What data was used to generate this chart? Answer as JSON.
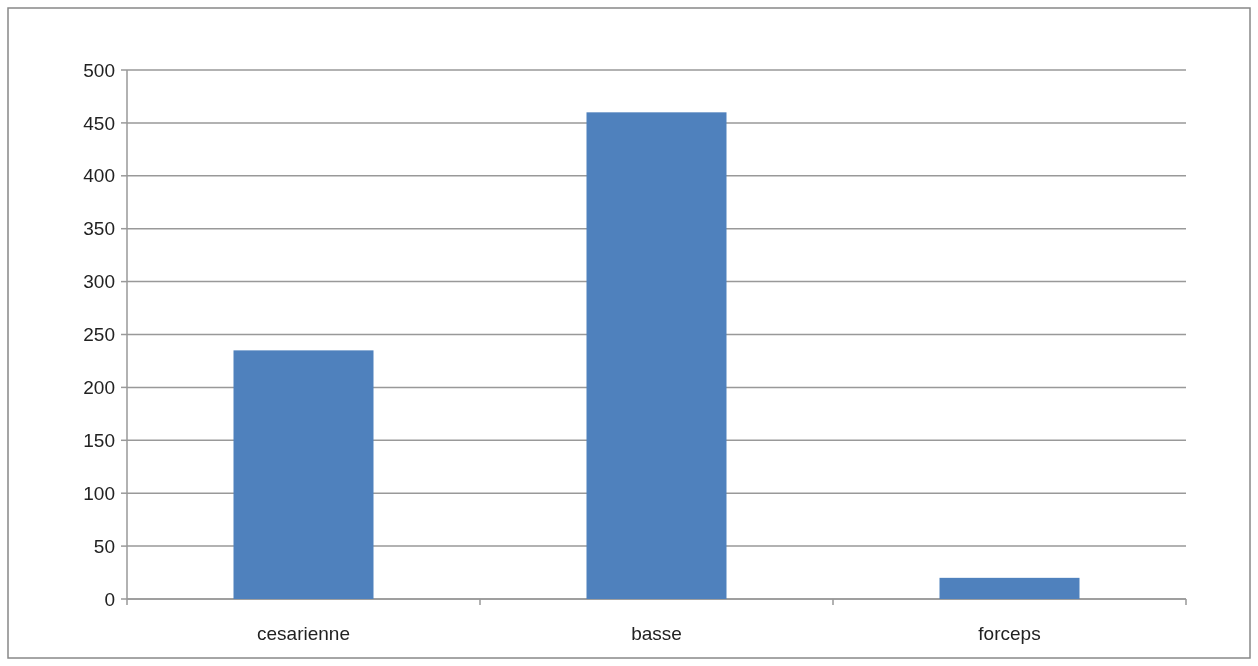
{
  "chart_data": {
    "type": "bar",
    "categories": [
      "cesarienne",
      "basse",
      "forceps"
    ],
    "values": [
      235,
      460,
      20
    ],
    "color": "#4f81bd",
    "ylim": [
      0,
      500
    ],
    "yticks": [
      0,
      50,
      100,
      150,
      200,
      250,
      300,
      350,
      400,
      450,
      500
    ],
    "grid": "y"
  }
}
